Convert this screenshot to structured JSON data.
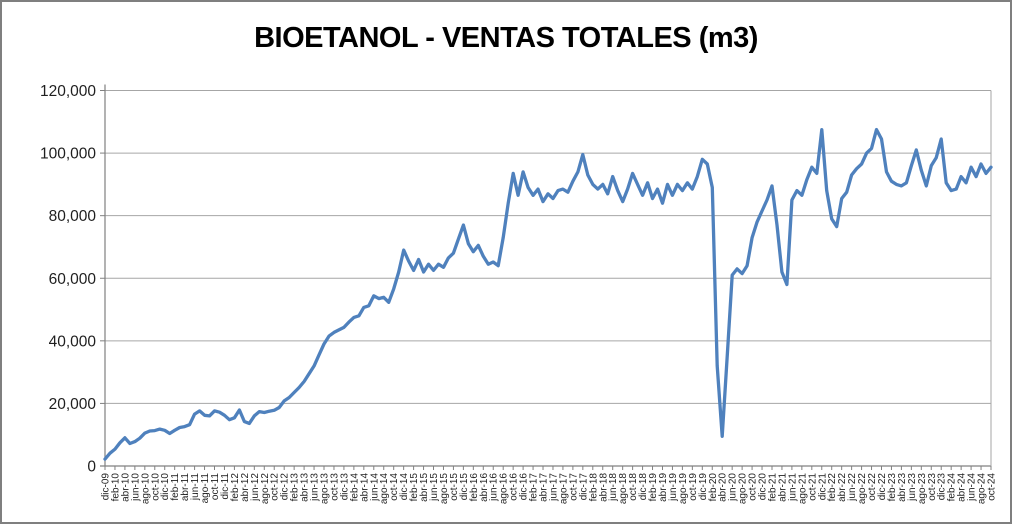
{
  "window": {
    "background_color": "#FFFFFF",
    "border_color": "#7F7F7F"
  },
  "styles": {
    "line_color": "#4F81BD",
    "gridline_color": "#A6A6A6",
    "axis_color": "#808080",
    "tick_label_color": "#1F1F1F",
    "title_color": "#000000"
  },
  "chart_data": {
    "type": "line",
    "title": "BIOETANOL - VENTAS TOTALES (m3)",
    "xlabel": "",
    "ylabel": "",
    "legend": "none",
    "grid": "horizontal-major",
    "ylim": [
      0,
      120000
    ],
    "y_major_unit": 20000,
    "y_tick_labels": [
      "0",
      "20,000",
      "40,000",
      "60,000",
      "80,000",
      "100,000",
      "120,000"
    ],
    "x_first_month": "dic-09",
    "x_last_month": "oct-24",
    "x_tick_step_months": 2,
    "x_tick_labels": [
      "dic-09",
      "feb-10",
      "abr-10",
      "jun-10",
      "ago-10",
      "oct-10",
      "dic-10",
      "feb-11",
      "abr-11",
      "jun-11",
      "ago-11",
      "oct-11",
      "dic-11",
      "feb-12",
      "abr-12",
      "jun-12",
      "ago-12",
      "oct-12",
      "dic-12",
      "feb-13",
      "abr-13",
      "jun-13",
      "ago-13",
      "oct-13",
      "dic-13",
      "feb-14",
      "abr-14",
      "jun-14",
      "ago-14",
      "oct-14",
      "dic-14",
      "feb-15",
      "abr-15",
      "jun-15",
      "ago-15",
      "oct-15",
      "dic-15",
      "feb-16",
      "abr-16",
      "jun-16",
      "ago-16",
      "oct-16",
      "dic-16",
      "feb-17",
      "abr-17",
      "jun-17",
      "ago-17",
      "oct-17",
      "dic-17",
      "feb-18",
      "abr-18",
      "jun-18",
      "ago-18",
      "oct-18",
      "dic-18",
      "feb-19",
      "abr-19",
      "jun-19",
      "ago-19",
      "oct-19",
      "dic-19",
      "feb-20",
      "abr-20",
      "jun-20",
      "ago-20",
      "oct-20",
      "dic-20",
      "feb-21",
      "abr-21",
      "jun-21",
      "ago-21",
      "oct-21",
      "dic-21",
      "feb-22",
      "abr-22",
      "jun-22",
      "ago-22",
      "oct-22",
      "dic-22",
      "feb-23",
      "abr-23",
      "jun-23",
      "ago-23",
      "oct-23",
      "dic-23",
      "feb-24",
      "abr-24",
      "jun-24",
      "ago-24",
      "oct-24"
    ],
    "values_monthly_m3": [
      2200,
      4100,
      5400,
      7400,
      9000,
      7200,
      7800,
      8900,
      10500,
      11200,
      11300,
      11800,
      11400,
      10400,
      11400,
      12300,
      12600,
      13200,
      16600,
      17600,
      16200,
      16000,
      17600,
      17200,
      16200,
      14800,
      15400,
      17900,
      14200,
      13600,
      16000,
      17400,
      17100,
      17500,
      17800,
      18700,
      20800,
      21900,
      23500,
      25100,
      27000,
      29500,
      32000,
      35500,
      39000,
      41500,
      42700,
      43500,
      44300,
      46000,
      47500,
      48000,
      50700,
      51200,
      54400,
      53500,
      53900,
      52300,
      56600,
      62000,
      69000,
      65500,
      62500,
      66000,
      62000,
      64500,
      62500,
      64500,
      63500,
      66500,
      68000,
      72500,
      77000,
      71000,
      68500,
      70500,
      67000,
      64500,
      65200,
      64000,
      73000,
      84000,
      93500,
      86500,
      94000,
      89000,
      86500,
      88500,
      84500,
      87000,
      85500,
      88000,
      88500,
      87500,
      91000,
      94000,
      99500,
      93000,
      90000,
      88500,
      90000,
      87000,
      92500,
      88000,
      84500,
      88500,
      93500,
      90000,
      86500,
      90500,
      85500,
      88500,
      84000,
      90000,
      86500,
      90000,
      88000,
      90500,
      88500,
      92500,
      98000,
      96500,
      89000,
      32000,
      9500,
      35000,
      61000,
      63000,
      61500,
      64000,
      73000,
      78000,
      81500,
      85000,
      89500,
      77000,
      62000,
      58000,
      85000,
      88000,
      86500,
      91500,
      95500,
      93500,
      107500,
      88000,
      79000,
      76500,
      85500,
      87500,
      93000,
      95000,
      96500,
      100000,
      101500,
      107500,
      104500,
      94000,
      91000,
      90000,
      89500,
      90500,
      96000,
      101000,
      94500,
      89500,
      96000,
      98500,
      104500,
      90500,
      88000,
      88500,
      92500,
      90500,
      95500,
      92500,
      96500,
      93500,
      95500
    ]
  }
}
